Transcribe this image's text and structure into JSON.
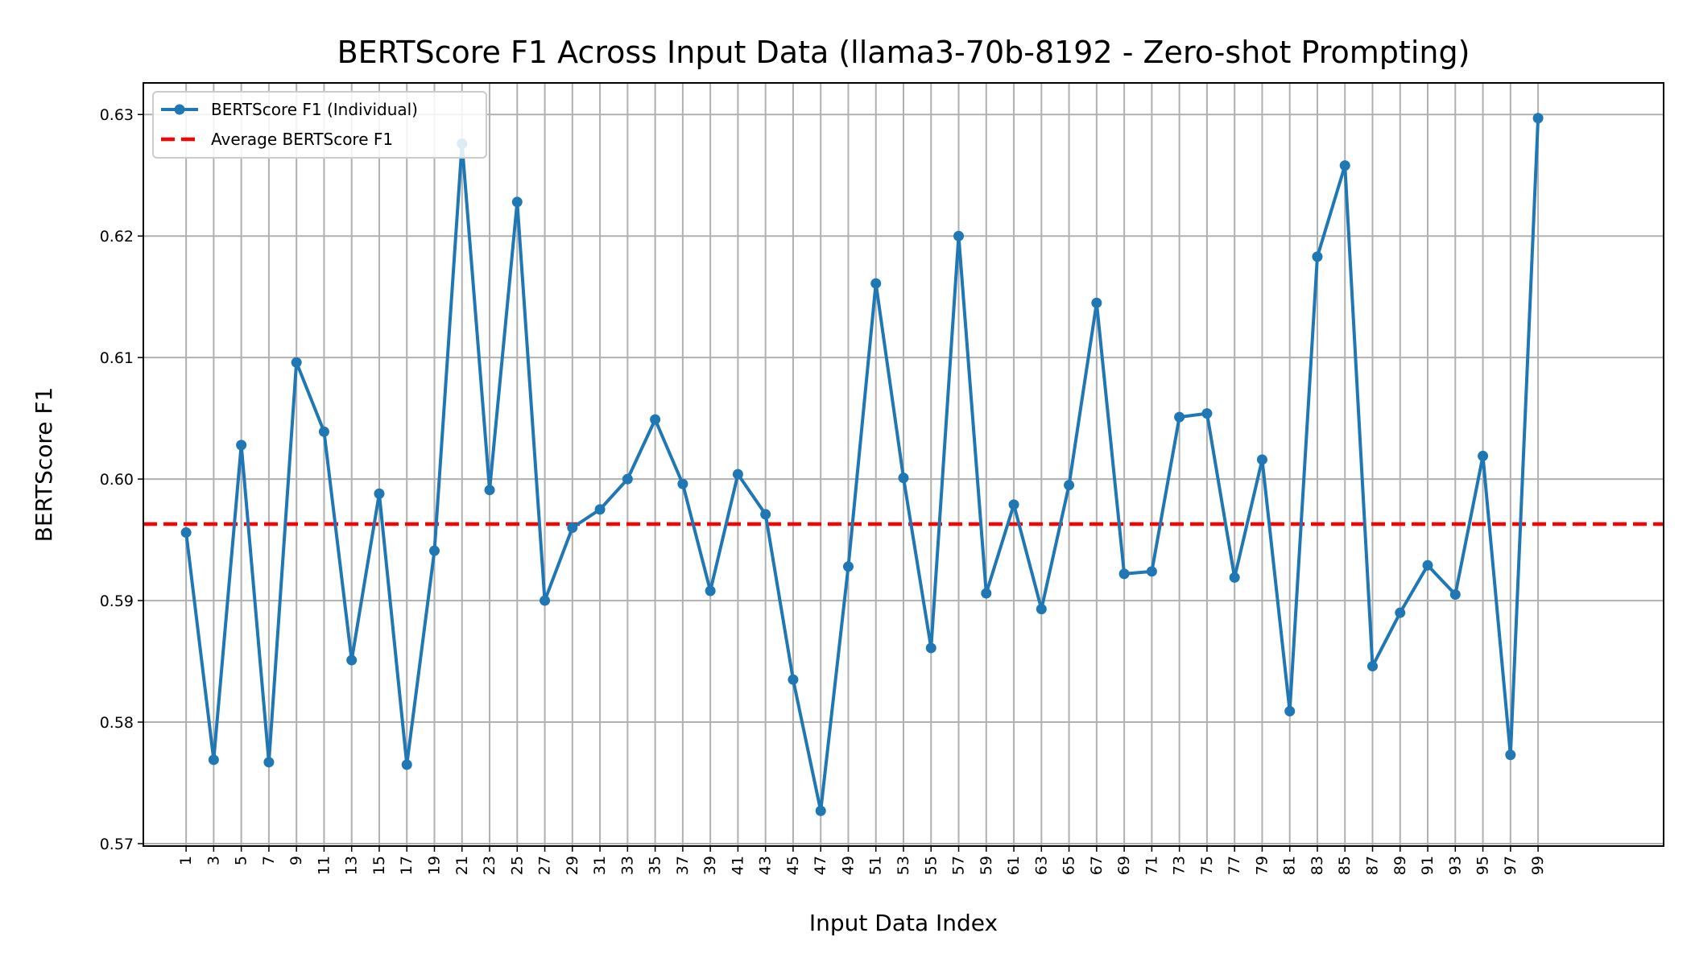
{
  "chart_data": {
    "type": "line",
    "title": "BERTScore F1 Across Input Data (llama3-70b-8192 - Zero-shot Prompting)",
    "xlabel": "Input Data Index",
    "ylabel": "BERTScore F1",
    "xlim": [
      -2.1,
      108.1
    ],
    "ylim": [
      0.5698,
      0.6326
    ],
    "yticks": [
      0.57,
      0.58,
      0.59,
      0.6,
      0.61,
      0.62,
      0.63
    ],
    "ytick_labels": [
      "0.57",
      "0.58",
      "0.59",
      "0.60",
      "0.61",
      "0.62",
      "0.63"
    ],
    "grid": true,
    "legend": {
      "position": "top-left",
      "entries": [
        "BERTScore F1 (Individual)",
        "Average BERTScore F1"
      ]
    },
    "series": [
      {
        "name": "BERTScore F1 (Individual)",
        "color": "#1f77b4",
        "style": "solid-with-markers",
        "x": [
          1,
          3,
          5,
          7,
          9,
          11,
          13,
          15,
          17,
          19,
          21,
          23,
          25,
          27,
          29,
          31,
          33,
          35,
          37,
          39,
          41,
          43,
          45,
          47,
          49,
          51,
          53,
          55,
          57,
          59,
          61,
          63,
          65,
          67,
          69,
          71,
          73,
          75,
          77,
          79,
          81,
          83,
          85,
          87,
          89,
          91,
          93,
          95,
          97,
          99
        ],
        "values": [
          0.5956,
          0.5769,
          0.6028,
          0.5767,
          0.6096,
          0.6039,
          0.5851,
          0.5988,
          0.5765,
          0.5941,
          0.6276,
          0.5991,
          0.6228,
          0.59,
          0.596,
          0.5975,
          0.6,
          0.6049,
          0.5996,
          0.5908,
          0.6004,
          0.5971,
          0.5835,
          0.5727,
          0.5928,
          0.6161,
          0.6001,
          0.5861,
          0.62,
          0.5906,
          0.5979,
          0.5893,
          0.5995,
          0.6145,
          0.5922,
          0.5924,
          0.6051,
          0.6054,
          0.5919,
          0.6016,
          0.5809,
          0.6183,
          0.6258,
          0.5846,
          0.589,
          0.5929,
          0.5905,
          0.6019,
          0.5773,
          0.6297
        ]
      },
      {
        "name": "Average BERTScore F1",
        "color": "#ff0000",
        "style": "dashed",
        "value": 0.5963
      }
    ]
  }
}
